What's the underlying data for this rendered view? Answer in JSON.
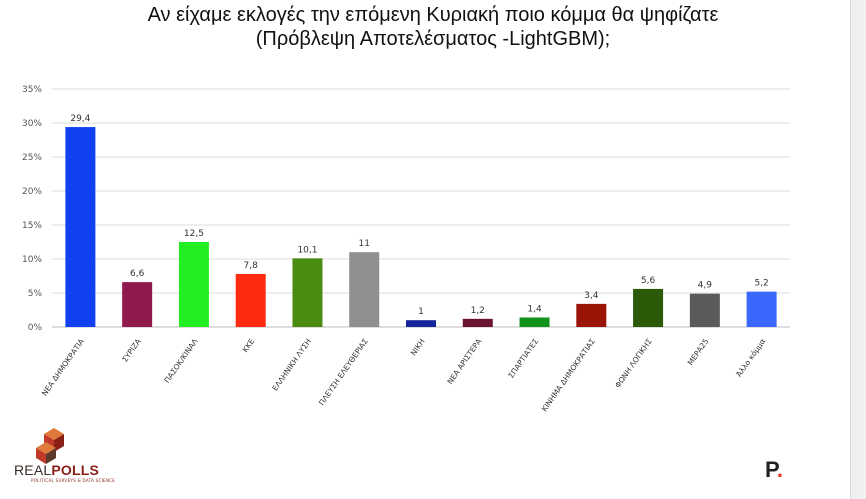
{
  "title": {
    "line1": "Αν είχαμε εκλογές την επόμενη Κυριακή ποιο κόμμα θα ψηφίζατε",
    "line2": "(Πρόβλεψη Αποτελέσματος -LightGBM);"
  },
  "chart_data": {
    "type": "bar",
    "title": "Αν είχαμε εκλογές την επόμενη Κυριακή ποιο κόμμα θα ψηφίζατε (Πρόβλεψη Αποτελέσματος -LightGBM);",
    "categories": [
      "ΝΕΑ ΔΗΜΟΚΡΑΤΙΑ",
      "ΣΥΡΙΖΑ",
      "ΠΑΣΟΚ/ΚΙΝΑΛ",
      "ΚΚΕ",
      "ΕΛΛΗΝΙΚΗ ΛΥΣΗ",
      "ΠΛΕΥΣΗ ΕΛΕΥΘΕΡΙΑΣ",
      "ΝΙΚΗ",
      "ΝΕΑ ΑΡΙΣΤΕΡΑ",
      "ΣΠΑΡΤΙΑΤΕΣ",
      "ΚΙΝΗΜΑ ΔΗΜΟΚΡΑΤΙΑΣ",
      "ΦΩΝΗ ΛΟΓΙΚΗΣ",
      "ΜΕΡΑ25",
      "Άλλο κόμμα"
    ],
    "values": [
      29.4,
      6.6,
      12.5,
      7.8,
      10.1,
      11,
      1,
      1.2,
      1.4,
      3.4,
      5.6,
      4.9,
      5.2
    ],
    "value_labels": [
      "29,4",
      "6,6",
      "12,5",
      "7,8",
      "10,1",
      "11",
      "1",
      "1,2",
      "1,4",
      "3,4",
      "5,6",
      "4,9",
      "5,2"
    ],
    "colors": [
      "#1040f0",
      "#901a4e",
      "#22ee22",
      "#ff2a10",
      "#4a8c12",
      "#8f8f8f",
      "#14249a",
      "#6a1232",
      "#12941c",
      "#9c1408",
      "#2c5a08",
      "#5a5a5a",
      "#3a68ff"
    ],
    "yticks": [
      "0%",
      "5%",
      "10%",
      "15%",
      "20%",
      "25%",
      "30%",
      "35%"
    ],
    "ylim": [
      0,
      35
    ],
    "grid": true,
    "xlabel": "",
    "ylabel": ""
  },
  "logo": {
    "text_a": "REAL",
    "text_b": "POLLS",
    "tagline": "POLITICAL SURVEYS & DATA SCIENCE",
    "colors": [
      "#c0392b",
      "#8a1f16",
      "#e07a3a",
      "#5b3a2a"
    ]
  },
  "brand": {
    "letter": "P",
    "dot": "."
  }
}
